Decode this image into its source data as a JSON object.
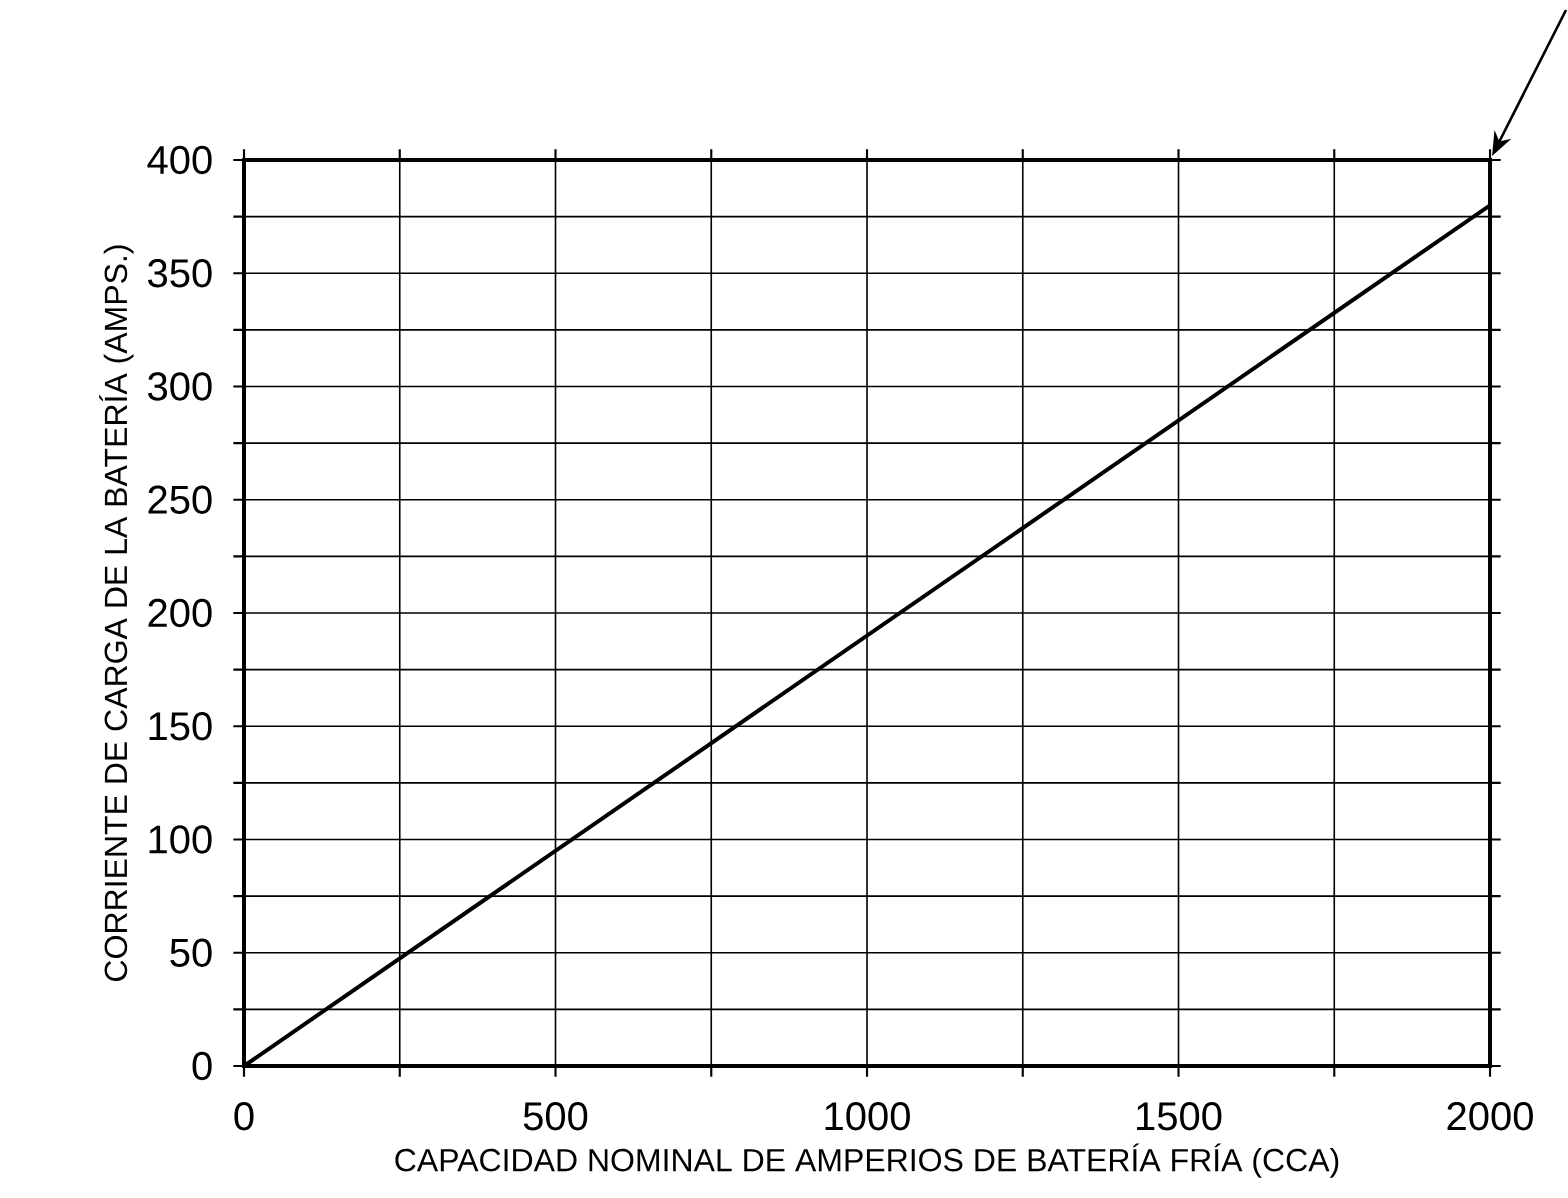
{
  "chart_data": {
    "type": "line",
    "xlabel": "CAPACIDAD NOMINAL DE AMPERIOS DE BATERÍA FRÍA (CCA)",
    "ylabel": "CORRIENTE DE CARGA DE LA BATERÍA (AMPS.)",
    "x": [
      0,
      2000
    ],
    "series": [
      {
        "color": "#000000",
        "values": [
          0,
          380
        ]
      }
    ],
    "xlim": [
      0,
      2000
    ],
    "ylim": [
      0,
      400
    ],
    "xticks": [
      0,
      {
        "value": 250,
        "label": null
      },
      500,
      {
        "value": 750,
        "label": null
      },
      1000,
      {
        "value": 1250,
        "label": null
      },
      1500,
      {
        "value": 1750,
        "label": null
      },
      2000
    ],
    "yticks": [
      0,
      {
        "value": 25,
        "label": null
      },
      50,
      {
        "value": 75,
        "label": null
      },
      100,
      {
        "value": 125,
        "label": null
      },
      150,
      {
        "value": 175,
        "label": null
      },
      200,
      {
        "value": 225,
        "label": null
      },
      250,
      {
        "value": 275,
        "label": null
      },
      300,
      {
        "value": 325,
        "label": null
      },
      350,
      {
        "value": 375,
        "label": null
      },
      400
    ],
    "grid": true,
    "marker": "none",
    "line_style": "solid"
  }
}
